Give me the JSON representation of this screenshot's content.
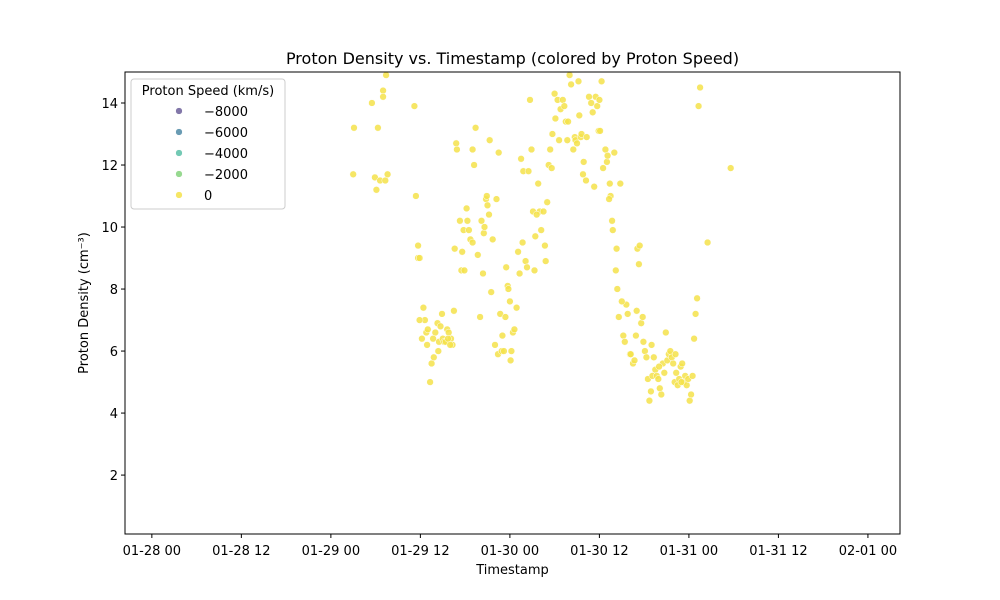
{
  "chart_data": {
    "type": "scatter",
    "title": "Proton Density vs. Timestamp (colored by Proton Speed)",
    "xlabel": "Timestamp",
    "ylabel": "Proton Density (cm⁻³)",
    "xlim_hours": [
      -3.6,
      100.3
    ],
    "ylim": [
      0.1,
      15.0
    ],
    "x_ticks": [
      {
        "hours": 0,
        "label": "01-28 00"
      },
      {
        "hours": 12,
        "label": "01-28 12"
      },
      {
        "hours": 24,
        "label": "01-29 00"
      },
      {
        "hours": 36,
        "label": "01-29 12"
      },
      {
        "hours": 48,
        "label": "01-30 00"
      },
      {
        "hours": 60,
        "label": "01-30 12"
      },
      {
        "hours": 72,
        "label": "01-31 00"
      },
      {
        "hours": 84,
        "label": "01-31 12"
      },
      {
        "hours": 96,
        "label": "02-01 00"
      }
    ],
    "y_ticks": [
      {
        "value": 2,
        "label": "2"
      },
      {
        "value": 4,
        "label": "4"
      },
      {
        "value": 6,
        "label": "6"
      },
      {
        "value": 8,
        "label": "8"
      },
      {
        "value": 10,
        "label": "10"
      },
      {
        "value": 12,
        "label": "12"
      },
      {
        "value": 14,
        "label": "14"
      }
    ],
    "legend": {
      "title": "Proton Speed (km/s)",
      "position": "top-left",
      "entries": [
        {
          "label": "−8000",
          "color": "#6c5f9a"
        },
        {
          "label": "−6000",
          "color": "#4f8aa6"
        },
        {
          "label": "−4000",
          "color": "#5bbfa7"
        },
        {
          "label": "−2000",
          "color": "#85d27d"
        },
        {
          "label": "0",
          "color": "#f5e24a"
        }
      ]
    },
    "point_color": "#f5e24a",
    "x_unit": "hours since 01-28 00",
    "points": [
      [
        27.0,
        11.7
      ],
      [
        27.1,
        13.2
      ],
      [
        29.9,
        11.6
      ],
      [
        29.5,
        14.0
      ],
      [
        30.1,
        11.2
      ],
      [
        30.3,
        13.2
      ],
      [
        30.6,
        11.5
      ],
      [
        31.0,
        14.4
      ],
      [
        31.0,
        14.2
      ],
      [
        31.3,
        11.5
      ],
      [
        31.4,
        14.9
      ],
      [
        31.6,
        11.7
      ],
      [
        35.2,
        13.9
      ],
      [
        35.4,
        11.0
      ],
      [
        35.7,
        9.4
      ],
      [
        35.7,
        9.0
      ],
      [
        35.9,
        9.0
      ],
      [
        36.2,
        6.4
      ],
      [
        36.4,
        7.4
      ],
      [
        36.6,
        7.0
      ],
      [
        36.8,
        6.6
      ],
      [
        37.0,
        6.7
      ],
      [
        37.3,
        5.0
      ],
      [
        37.5,
        5.6
      ],
      [
        37.8,
        5.8
      ],
      [
        37.7,
        6.4
      ],
      [
        38.0,
        6.6
      ],
      [
        38.3,
        6.9
      ],
      [
        38.5,
        6.3
      ],
      [
        38.7,
        6.8
      ],
      [
        38.9,
        7.2
      ],
      [
        39.0,
        6.4
      ],
      [
        39.2,
        6.3
      ],
      [
        39.4,
        6.3
      ],
      [
        39.6,
        6.7
      ],
      [
        39.8,
        6.6
      ],
      [
        40.1,
        6.4
      ],
      [
        40.3,
        6.2
      ],
      [
        40.5,
        7.3
      ],
      [
        40.6,
        9.3
      ],
      [
        40.8,
        12.7
      ],
      [
        40.9,
        12.5
      ],
      [
        41.3,
        10.2
      ],
      [
        41.5,
        8.6
      ],
      [
        41.6,
        9.2
      ],
      [
        41.8,
        9.9
      ],
      [
        41.9,
        8.6
      ],
      [
        42.2,
        10.6
      ],
      [
        42.3,
        10.2
      ],
      [
        42.5,
        9.9
      ],
      [
        42.7,
        9.6
      ],
      [
        43.0,
        12.5
      ],
      [
        43.0,
        9.5
      ],
      [
        43.2,
        12.0
      ],
      [
        43.4,
        13.2
      ],
      [
        43.7,
        9.1
      ],
      [
        44.0,
        7.1
      ],
      [
        44.2,
        10.2
      ],
      [
        44.4,
        8.5
      ],
      [
        44.5,
        9.8
      ],
      [
        44.6,
        10.0
      ],
      [
        44.8,
        10.9
      ],
      [
        45.0,
        10.7
      ],
      [
        45.2,
        10.4
      ],
      [
        45.3,
        12.8
      ],
      [
        45.5,
        7.9
      ],
      [
        45.7,
        9.6
      ],
      [
        46.0,
        6.2
      ],
      [
        46.2,
        10.9
      ],
      [
        46.4,
        5.9
      ],
      [
        46.7,
        7.2
      ],
      [
        46.9,
        6.0
      ],
      [
        47.0,
        6.5
      ],
      [
        47.2,
        6.0
      ],
      [
        47.4,
        7.1
      ],
      [
        47.5,
        8.7
      ],
      [
        47.7,
        8.1
      ],
      [
        47.8,
        8.0
      ],
      [
        48.0,
        7.6
      ],
      [
        48.1,
        5.7
      ],
      [
        48.2,
        6.0
      ],
      [
        48.4,
        6.6
      ],
      [
        48.6,
        6.7
      ],
      [
        48.9,
        7.4
      ],
      [
        49.1,
        9.2
      ],
      [
        49.3,
        8.5
      ],
      [
        49.5,
        12.2
      ],
      [
        49.7,
        9.5
      ],
      [
        49.8,
        11.8
      ],
      [
        50.1,
        8.9
      ],
      [
        50.3,
        8.7
      ],
      [
        50.5,
        11.8
      ],
      [
        50.7,
        14.1
      ],
      [
        50.9,
        12.5
      ],
      [
        51.1,
        10.5
      ],
      [
        51.3,
        8.6
      ],
      [
        51.4,
        9.7
      ],
      [
        51.8,
        11.4
      ],
      [
        52.0,
        10.5
      ],
      [
        52.2,
        9.9
      ],
      [
        52.5,
        10.5
      ],
      [
        52.7,
        9.4
      ],
      [
        52.8,
        8.9
      ],
      [
        53.0,
        10.8
      ],
      [
        53.2,
        12.0
      ],
      [
        53.4,
        12.5
      ],
      [
        53.6,
        11.9
      ],
      [
        53.7,
        13.0
      ],
      [
        54.0,
        14.3
      ],
      [
        54.1,
        13.5
      ],
      [
        54.4,
        14.1
      ],
      [
        54.6,
        12.8
      ],
      [
        54.8,
        13.8
      ],
      [
        55.1,
        14.1
      ],
      [
        55.3,
        13.9
      ],
      [
        55.5,
        13.4
      ],
      [
        55.7,
        12.8
      ],
      [
        55.8,
        13.4
      ],
      [
        56.2,
        14.6
      ],
      [
        56.5,
        12.5
      ],
      [
        56.7,
        12.9
      ],
      [
        56.8,
        12.8
      ],
      [
        57.0,
        12.7
      ],
      [
        57.3,
        13.6
      ],
      [
        57.5,
        12.9
      ],
      [
        57.6,
        13.0
      ],
      [
        57.8,
        11.7
      ],
      [
        57.9,
        12.1
      ],
      [
        58.2,
        11.5
      ],
      [
        58.3,
        12.9
      ],
      [
        58.6,
        14.2
      ],
      [
        58.9,
        14.0
      ],
      [
        59.1,
        13.7
      ],
      [
        59.3,
        11.3
      ],
      [
        59.5,
        14.2
      ],
      [
        59.7,
        13.9
      ],
      [
        59.9,
        13.1
      ],
      [
        60.1,
        13.1
      ],
      [
        60.3,
        14.7
      ],
      [
        60.5,
        11.9
      ],
      [
        60.8,
        12.5
      ],
      [
        61.0,
        12.1
      ],
      [
        61.1,
        12.3
      ],
      [
        61.4,
        11.4
      ],
      [
        61.5,
        11.0
      ],
      [
        61.7,
        10.2
      ],
      [
        61.8,
        9.9
      ],
      [
        62.0,
        12.4
      ],
      [
        62.2,
        8.6
      ],
      [
        62.4,
        8.0
      ],
      [
        62.6,
        7.1
      ],
      [
        62.8,
        11.4
      ],
      [
        63.2,
        6.5
      ],
      [
        63.4,
        6.3
      ],
      [
        63.6,
        7.5
      ],
      [
        63.8,
        7.2
      ],
      [
        64.1,
        5.9
      ],
      [
        64.2,
        5.9
      ],
      [
        64.5,
        5.6
      ],
      [
        64.7,
        5.7
      ],
      [
        64.9,
        6.5
      ],
      [
        65.1,
        9.3
      ],
      [
        65.3,
        8.8
      ],
      [
        65.4,
        9.4
      ],
      [
        65.6,
        6.9
      ],
      [
        65.8,
        7.1
      ],
      [
        65.9,
        6.3
      ],
      [
        66.1,
        6.0
      ],
      [
        66.3,
        5.8
      ],
      [
        66.5,
        5.1
      ],
      [
        66.7,
        4.4
      ],
      [
        66.9,
        4.7
      ],
      [
        67.1,
        5.2
      ],
      [
        67.3,
        5.8
      ],
      [
        67.5,
        5.4
      ],
      [
        67.7,
        5.2
      ],
      [
        67.9,
        5.1
      ],
      [
        68.1,
        4.8
      ],
      [
        68.3,
        4.6
      ],
      [
        68.5,
        5.6
      ],
      [
        68.7,
        5.3
      ],
      [
        68.9,
        6.6
      ],
      [
        69.1,
        5.7
      ],
      [
        69.3,
        5.9
      ],
      [
        69.5,
        6.0
      ],
      [
        69.7,
        5.8
      ],
      [
        69.9,
        5.6
      ],
      [
        70.1,
        5.0
      ],
      [
        70.3,
        5.3
      ],
      [
        70.5,
        4.9
      ],
      [
        70.7,
        5.1
      ],
      [
        70.9,
        5.5
      ],
      [
        71.1,
        5.6
      ],
      [
        71.3,
        5.0
      ],
      [
        71.5,
        5.2
      ],
      [
        71.7,
        4.9
      ],
      [
        71.9,
        5.1
      ],
      [
        72.1,
        4.4
      ],
      [
        72.3,
        4.6
      ],
      [
        72.5,
        5.2
      ],
      [
        72.7,
        6.4
      ],
      [
        72.9,
        7.2
      ],
      [
        73.1,
        7.7
      ],
      [
        73.3,
        13.9
      ],
      [
        73.5,
        14.5
      ],
      [
        74.5,
        9.5
      ],
      [
        77.6,
        11.9
      ],
      [
        56.0,
        14.9
      ],
      [
        57.2,
        14.7
      ],
      [
        51.6,
        10.4
      ],
      [
        44.9,
        11.0
      ],
      [
        46.5,
        12.4
      ],
      [
        35.9,
        7.0
      ],
      [
        36.9,
        6.2
      ],
      [
        38.4,
        6.0
      ],
      [
        39.7,
        6.4
      ],
      [
        40.0,
        6.2
      ],
      [
        60.0,
        14.1
      ],
      [
        67.0,
        6.2
      ],
      [
        65.0,
        7.3
      ],
      [
        63.0,
        7.6
      ],
      [
        62.3,
        9.3
      ],
      [
        61.3,
        10.9
      ],
      [
        68.0,
        5.5
      ],
      [
        70.2,
        5.9
      ],
      [
        71.0,
        5.0
      ]
    ]
  }
}
